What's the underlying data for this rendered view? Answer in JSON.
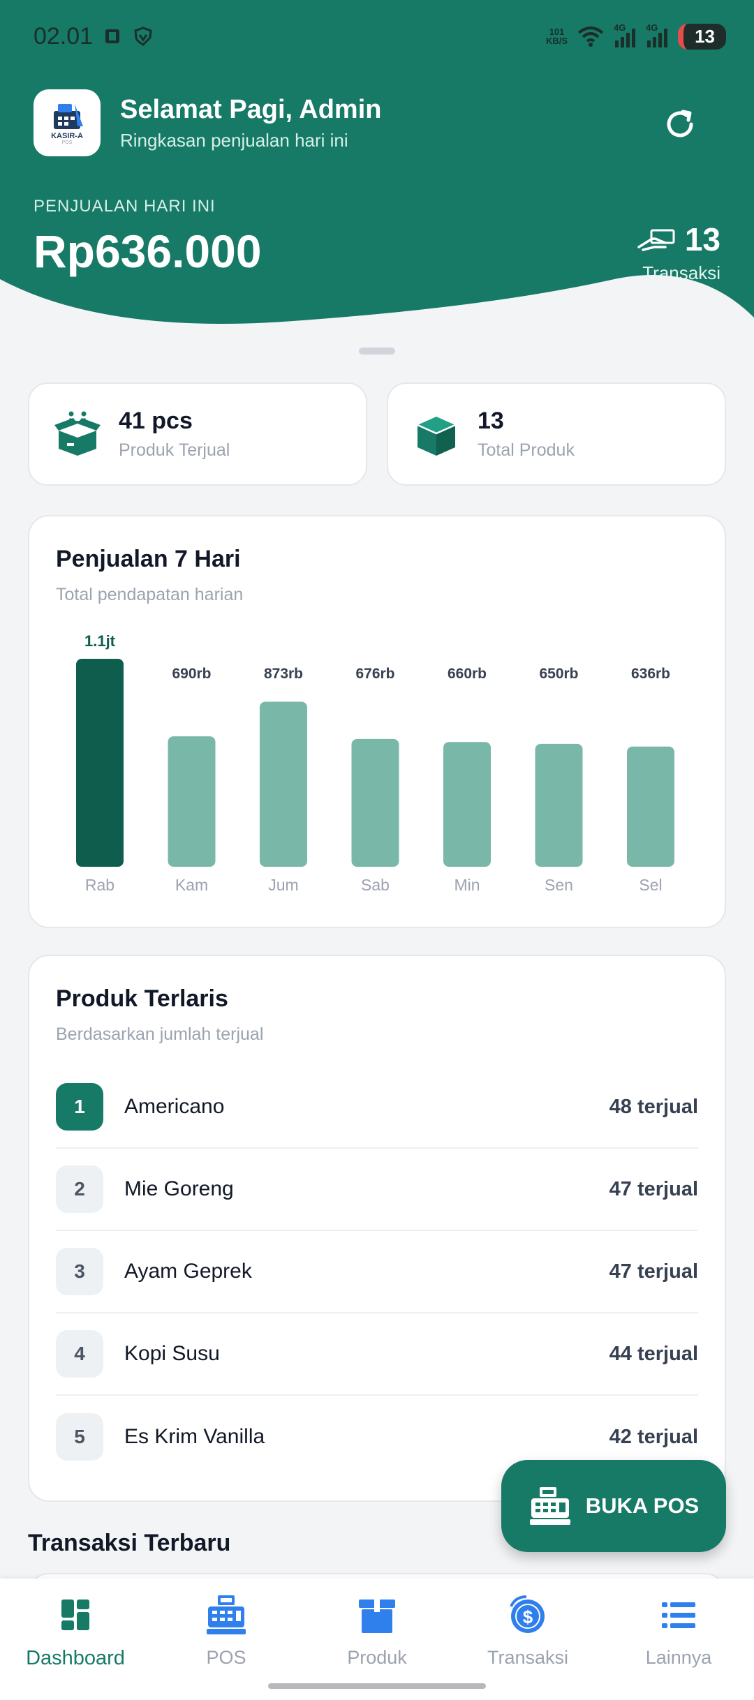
{
  "status_bar": {
    "time": "02.01",
    "net_speed_top": "101",
    "net_speed_bottom": "KB/S",
    "net1": "4G",
    "net2": "4G",
    "battery": "13"
  },
  "header": {
    "title": "Selamat Pagi, Admin",
    "subtitle": "Ringkasan penjualan hari ini",
    "logo_text": "KASIR-A",
    "logo_sub": "POS"
  },
  "sales": {
    "label": "PENJUALAN HARI INI",
    "value": "Rp636.000",
    "tx_count": "13",
    "tx_label": "Transaksi"
  },
  "stats": [
    {
      "value": "41 pcs",
      "label": "Produk Terjual"
    },
    {
      "value": "13",
      "label": "Total Produk"
    }
  ],
  "sales_chart": {
    "title": "Penjualan 7 Hari",
    "subtitle": "Total pendapatan harian"
  },
  "chart_data": {
    "type": "bar",
    "categories": [
      "Rab",
      "Kam",
      "Jum",
      "Sab",
      "Min",
      "Sen",
      "Sel"
    ],
    "values": [
      1100000,
      690000,
      873000,
      676000,
      660000,
      650000,
      636000
    ],
    "data_labels": [
      "1.1jt",
      "690rb",
      "873rb",
      "676rb",
      "660rb",
      "650rb",
      "636rb"
    ],
    "highlight_index": 0,
    "colors": {
      "highlight": "#0f5e4d",
      "default": "#79b7a9"
    }
  },
  "top_products": {
    "title": "Produk Terlaris",
    "subtitle": "Berdasarkan jumlah terjual",
    "items": [
      {
        "rank": "1",
        "name": "Americano",
        "count": "48 terjual"
      },
      {
        "rank": "2",
        "name": "Mie Goreng",
        "count": "47 terjual"
      },
      {
        "rank": "3",
        "name": "Ayam Geprek",
        "count": "47 terjual"
      },
      {
        "rank": "4",
        "name": "Kopi Susu",
        "count": "44 terjual"
      },
      {
        "rank": "5",
        "name": "Es Krim Vanilla",
        "count": "42 terjual"
      }
    ]
  },
  "recent_transactions": {
    "title": "Transaksi Terbaru"
  },
  "fab": {
    "label": "BUKA POS"
  },
  "nav": [
    {
      "label": "Dashboard",
      "icon": "dashboard-icon",
      "active": true
    },
    {
      "label": "POS",
      "icon": "cash-register-icon"
    },
    {
      "label": "Produk",
      "icon": "box-icon"
    },
    {
      "label": "Transaksi",
      "icon": "dollar-coin-icon"
    },
    {
      "label": "Lainnya",
      "icon": "list-icon"
    }
  ],
  "colors": {
    "brand": "#167a66",
    "brand_dark": "#0f5e4d",
    "bar": "#79b7a9",
    "nav_icon": "#2f80ed"
  }
}
